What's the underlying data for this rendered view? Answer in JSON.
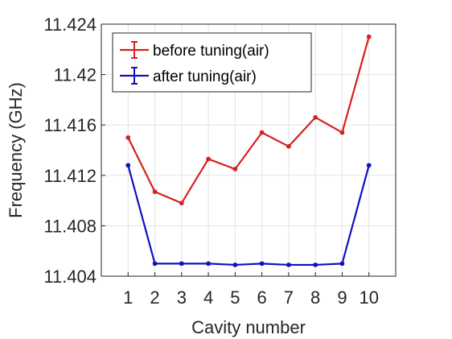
{
  "chart_data": {
    "type": "line",
    "title": "",
    "xlabel": "Cavity number",
    "ylabel": "Frequency (GHz)",
    "x": [
      1,
      2,
      3,
      4,
      5,
      6,
      7,
      8,
      9,
      10
    ],
    "xlim": [
      0,
      11
    ],
    "ylim": [
      11.404,
      11.424
    ],
    "xticks": [
      "1",
      "2",
      "3",
      "4",
      "5",
      "6",
      "7",
      "8",
      "9",
      "10"
    ],
    "yticks": [
      "11.404",
      "11.408",
      "11.412",
      "11.416",
      "11.42",
      "11.424"
    ],
    "grid": true,
    "legend_position": "top-left",
    "series": [
      {
        "name": "before tuning(air)",
        "color": "#d42121",
        "values": [
          11.415,
          11.4107,
          11.4098,
          11.4133,
          11.4125,
          11.4154,
          11.4143,
          11.4166,
          11.4154,
          11.423
        ]
      },
      {
        "name": "after tuning(air)",
        "color": "#1111bb",
        "values": [
          11.4128,
          11.405,
          11.405,
          11.405,
          11.4049,
          11.405,
          11.4049,
          11.4049,
          11.405,
          11.4128
        ]
      }
    ]
  }
}
